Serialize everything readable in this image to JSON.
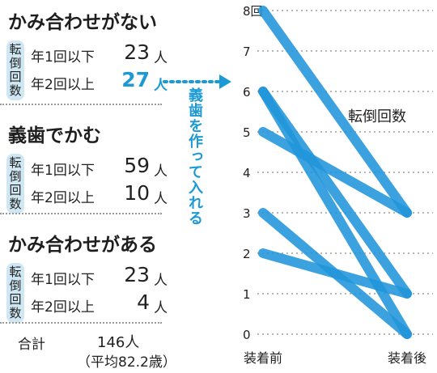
{
  "summary": {
    "groups": [
      {
        "title": "かみ合わせがない",
        "tag": [
          "転",
          "倒",
          "回",
          "数"
        ],
        "rows": [
          {
            "label": "年1回以下",
            "value": "23",
            "unit": "人",
            "highlight": false
          },
          {
            "label": "年2回以上",
            "value": "27",
            "unit": "人",
            "highlight": true
          }
        ]
      },
      {
        "title": "義歯でかむ",
        "tag": [
          "転",
          "倒",
          "回",
          "数"
        ],
        "rows": [
          {
            "label": "年1回以下",
            "value": "59",
            "unit": "人",
            "highlight": false
          },
          {
            "label": "年2回以上",
            "value": "10",
            "unit": "人",
            "highlight": false
          }
        ]
      },
      {
        "title": "かみ合わせがある",
        "tag": [
          "転",
          "倒",
          "回",
          "数"
        ],
        "rows": [
          {
            "label": "年1回以下",
            "value": "23",
            "unit": "人",
            "highlight": false
          },
          {
            "label": "年2回以上",
            "value": "4",
            "unit": "人",
            "highlight": false
          }
        ]
      }
    ],
    "total": {
      "label": "合計",
      "value": "146人",
      "sub": "（平均82.2歳）"
    }
  },
  "arrow_label": "義歯を作って入れる",
  "colors": {
    "accent": "#1c9ad6",
    "tag_bg": "#cfe6f3",
    "line": "#2196db"
  },
  "chart_data": {
    "type": "line",
    "title": "",
    "series_label": "転倒回数",
    "xlabel": "",
    "ylabel": "",
    "categories": [
      "装着前",
      "装着後"
    ],
    "ylim": [
      0,
      8
    ],
    "yticks": [
      0,
      1,
      2,
      3,
      4,
      5,
      6,
      7,
      8
    ],
    "ytick_labels": [
      "0",
      "1",
      "2",
      "3",
      "4",
      "5",
      "6",
      "7",
      "8回"
    ],
    "grid": true,
    "series": [
      {
        "values": [
          8,
          3
        ]
      },
      {
        "values": [
          6,
          1
        ]
      },
      {
        "values": [
          6,
          0
        ]
      },
      {
        "values": [
          5,
          3
        ]
      },
      {
        "values": [
          3,
          0
        ]
      },
      {
        "values": [
          2,
          1
        ]
      }
    ]
  }
}
